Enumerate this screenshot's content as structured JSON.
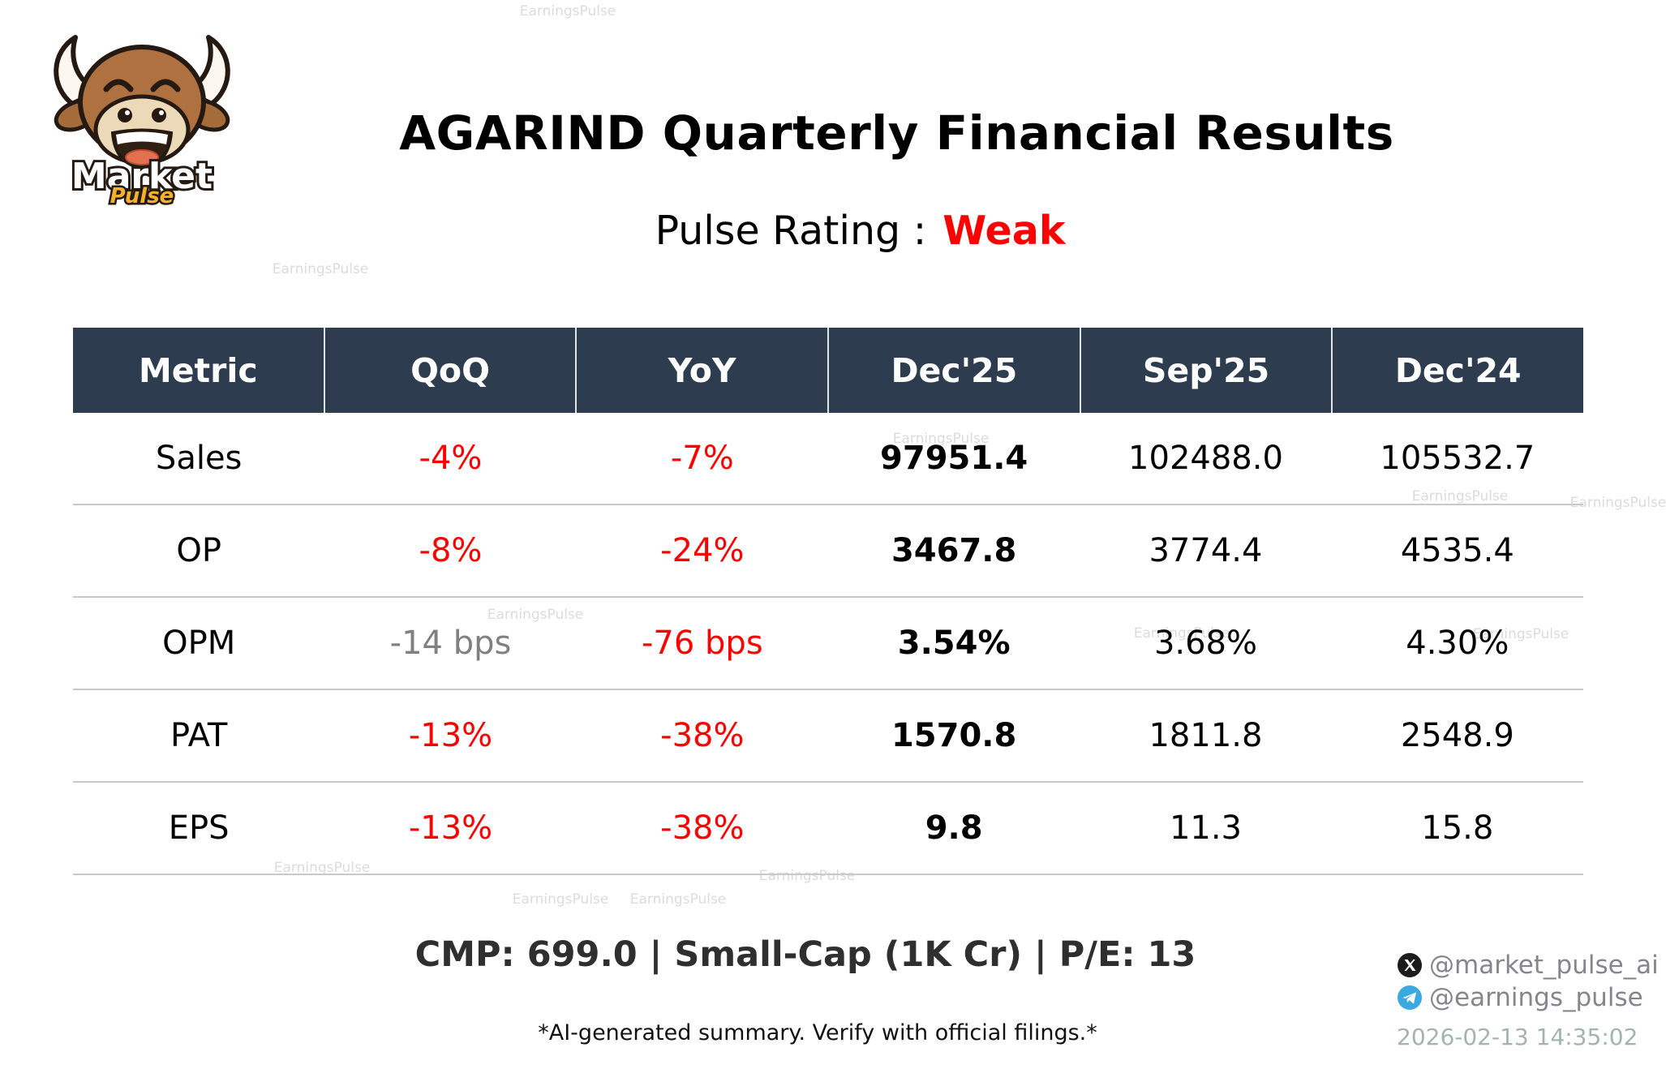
{
  "watermark_text": "EarningsPulse",
  "logo": {
    "line1": "Market",
    "line2": "Pulse"
  },
  "header": {
    "title": "AGARIND Quarterly Financial Results",
    "rating_label": "Pulse Rating :",
    "rating_value": "Weak"
  },
  "table": {
    "columns": [
      "Metric",
      "QoQ",
      "YoY",
      "Dec'25",
      "Sep'25",
      "Dec'24"
    ],
    "rows": [
      {
        "metric": "Sales",
        "qoq": "-4%",
        "yoy": "-7%",
        "dec25": "97951.4",
        "sep25": "102488.0",
        "dec24": "105532.7",
        "styles": {
          "qoq": "neg",
          "yoy": "neg",
          "dec25": "em"
        }
      },
      {
        "metric": "OP",
        "qoq": "-8%",
        "yoy": "-24%",
        "dec25": "3467.8",
        "sep25": "3774.4",
        "dec24": "4535.4",
        "styles": {
          "qoq": "neg",
          "yoy": "neg",
          "dec25": "em"
        }
      },
      {
        "metric": "OPM",
        "qoq": "-14 bps",
        "yoy": "-76 bps",
        "dec25": "3.54%",
        "sep25": "3.68%",
        "dec24": "4.30%",
        "styles": {
          "qoq": "muted",
          "yoy": "neg",
          "dec25": "em"
        }
      },
      {
        "metric": "PAT",
        "qoq": "-13%",
        "yoy": "-38%",
        "dec25": "1570.8",
        "sep25": "1811.8",
        "dec24": "2548.9",
        "styles": {
          "qoq": "neg",
          "yoy": "neg",
          "dec25": "em"
        }
      },
      {
        "metric": "EPS",
        "qoq": "-13%",
        "yoy": "-38%",
        "dec25": "9.8",
        "sep25": "11.3",
        "dec24": "15.8",
        "styles": {
          "qoq": "neg",
          "yoy": "neg",
          "dec25": "em"
        }
      }
    ]
  },
  "footer": {
    "summary": "CMP: 699.0 | Small-Cap (1K Cr) | P/E: 13",
    "disclaimer": "*AI-generated summary. Verify with official filings.*",
    "x_handle": "@market_pulse_ai",
    "telegram_handle": "@earnings_pulse",
    "timestamp": "2026-02-13 14:35:02"
  },
  "colors": {
    "accent_red": "#ff0000",
    "muted_gray": "#808080",
    "header_bg": "#2d3c4e",
    "row_divider": "#c9c9c9",
    "watermark": "#c4c4c4"
  }
}
